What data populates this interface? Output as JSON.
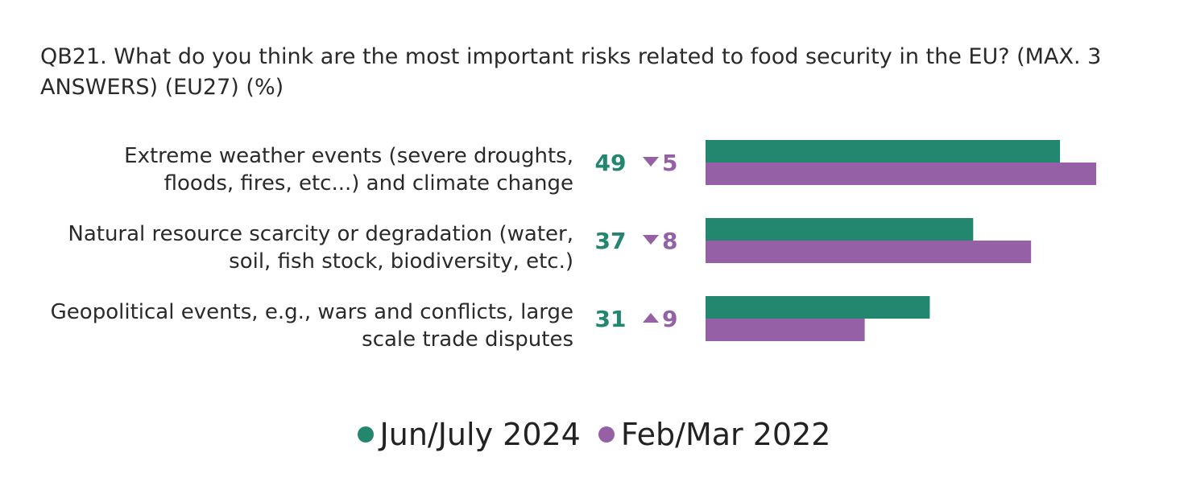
{
  "title": "QB21. What do you think are the most important risks related to food security in the EU? (MAX. 3 ANSWERS) (EU27) (%)",
  "colors": {
    "series_1": "#23866f",
    "series_2": "#9560a6",
    "label_text": "#2a2a2a"
  },
  "icons": {
    "down": "triangle-down-icon",
    "up": "triangle-up-icon"
  },
  "chart_data": {
    "type": "bar",
    "orientation": "horizontal",
    "title": "QB21. What do you think are the most important risks related to food security in the EU? (MAX. 3 ANSWERS) (EU27) (%)",
    "categories": [
      [
        "Extreme weather events (severe droughts,",
        "floods, fires, etc...) and climate change"
      ],
      [
        "Natural resource scarcity or degradation (water,",
        "soil, fish stock, biodiversity, etc.)"
      ],
      [
        "Geopolitical events, e.g., wars and conflicts, large",
        "scale trade disputes"
      ]
    ],
    "series": [
      {
        "name": "Jun/July 2024",
        "values": [
          49,
          37,
          31
        ]
      },
      {
        "name": "Feb/Mar 2022",
        "values": [
          54,
          45,
          22
        ]
      }
    ],
    "value_labels": [
      "49",
      "37",
      "31"
    ],
    "changes": [
      {
        "direction": "down",
        "value": "5"
      },
      {
        "direction": "down",
        "value": "8"
      },
      {
        "direction": "up",
        "value": "9"
      }
    ],
    "xlim": [
      0,
      54
    ],
    "grid": false,
    "legend_position": "bottom"
  }
}
